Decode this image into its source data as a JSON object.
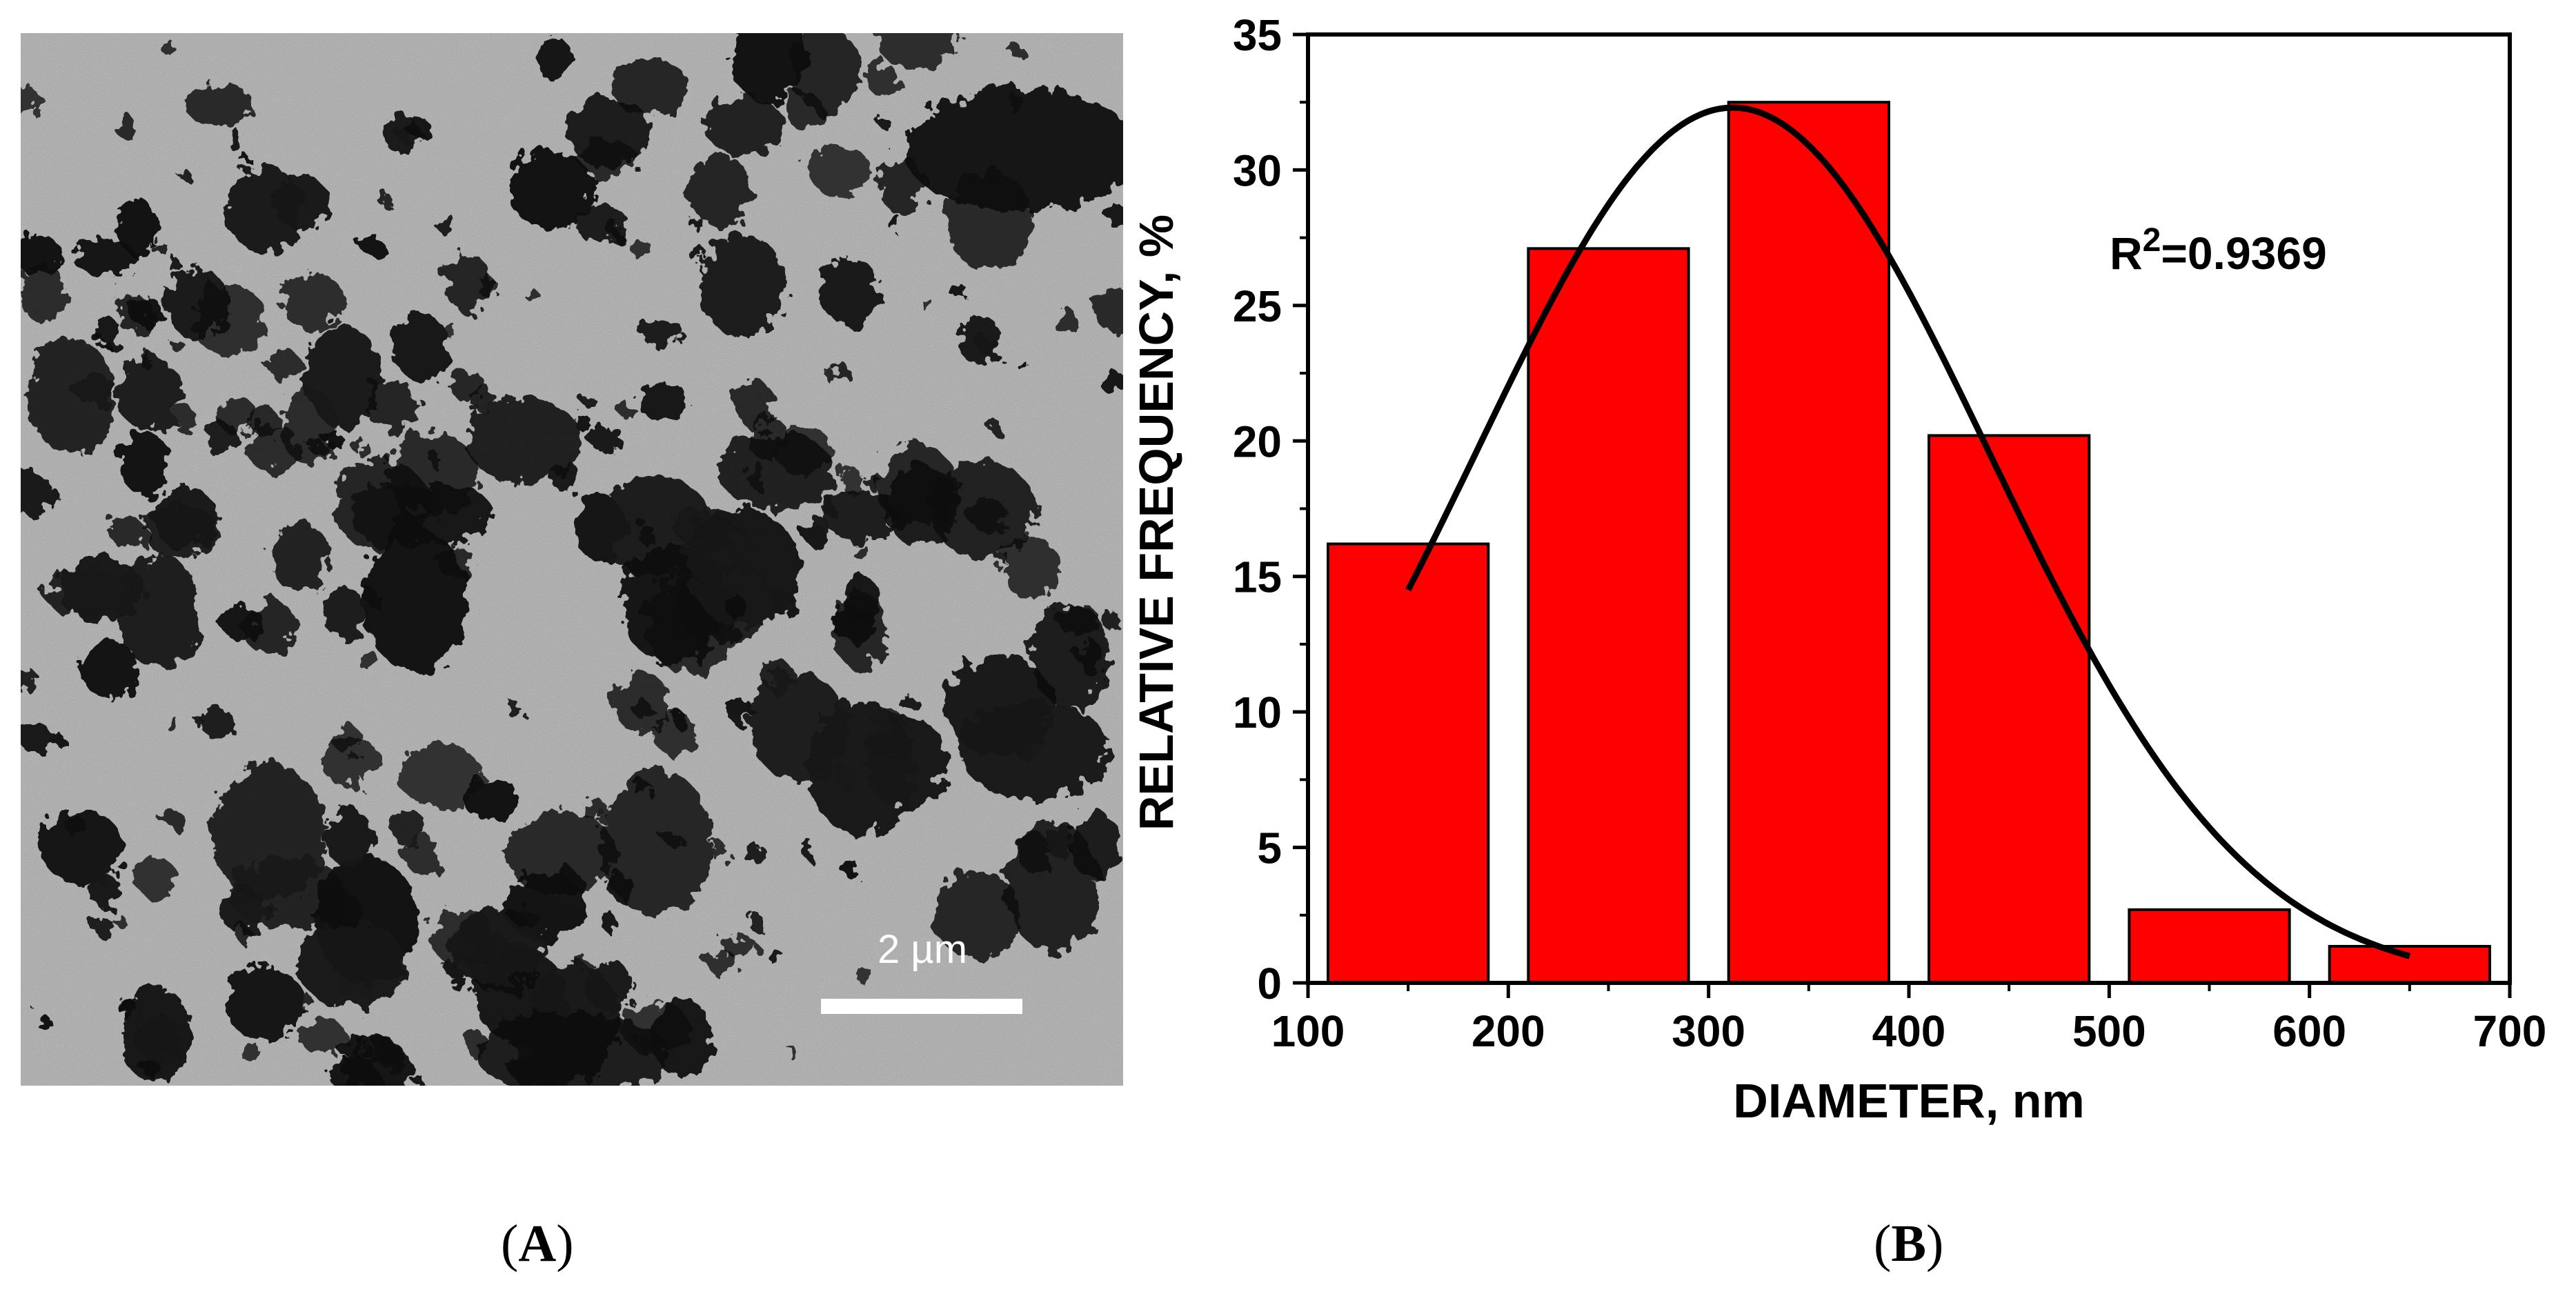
{
  "figure": {
    "panel_a_label": "A",
    "panel_b_label": "B"
  },
  "micrograph": {
    "scale_bar_label": "2 µm"
  },
  "chart_data": {
    "type": "bar",
    "xlabel": "DIAMETER, nm",
    "ylabel": "RELATIVE FREQUENCY, %",
    "xlim": [
      100,
      700
    ],
    "ylim": [
      0,
      35
    ],
    "xticks": [
      100,
      200,
      300,
      400,
      500,
      600,
      700
    ],
    "yticks": [
      0,
      5,
      10,
      15,
      20,
      25,
      30,
      35
    ],
    "bars": [
      {
        "x_start": 110,
        "x_end": 190,
        "value": 16.2
      },
      {
        "x_start": 210,
        "x_end": 290,
        "value": 27.1
      },
      {
        "x_start": 310,
        "x_end": 390,
        "value": 32.5
      },
      {
        "x_start": 410,
        "x_end": 490,
        "value": 20.2
      },
      {
        "x_start": 510,
        "x_end": 590,
        "value": 2.7
      },
      {
        "x_start": 610,
        "x_end": 690,
        "value": 1.35
      }
    ],
    "bar_color": "#ff0000",
    "fit_curve": {
      "type": "gaussian",
      "x_range": [
        150,
        650
      ],
      "amplitude": 32.3,
      "mean": 312,
      "sigma": 128,
      "color": "#000000"
    },
    "annotation": {
      "base": "R",
      "superscript": "2",
      "rest": "=0.9369"
    }
  }
}
